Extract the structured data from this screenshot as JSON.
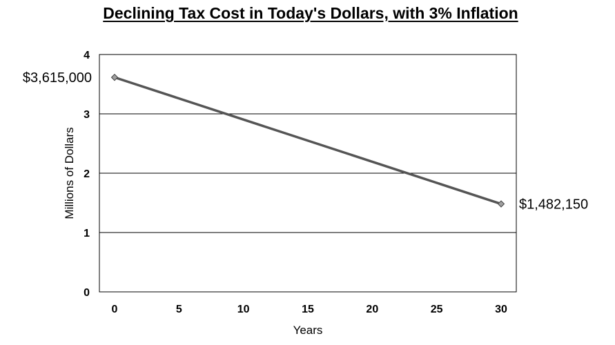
{
  "chart_data": {
    "type": "line",
    "title": "Declining Tax Cost in Today's Dollars, with 3% Inflation",
    "xlabel": "Years",
    "ylabel": "Millions of Dollars",
    "x": [
      0,
      30
    ],
    "series": [
      {
        "values": [
          3.615,
          1.48215
        ],
        "color": "#555555"
      }
    ],
    "xticks": [
      "0",
      "5",
      "10",
      "15",
      "20",
      "25",
      "30"
    ],
    "yticks": [
      "0",
      "1",
      "2",
      "3",
      "4"
    ],
    "xlim": [
      0,
      30
    ],
    "ylim": [
      0,
      4
    ],
    "grid": "horizontal",
    "data_labels": [
      "$3,615,000",
      "$1,482,150"
    ]
  }
}
